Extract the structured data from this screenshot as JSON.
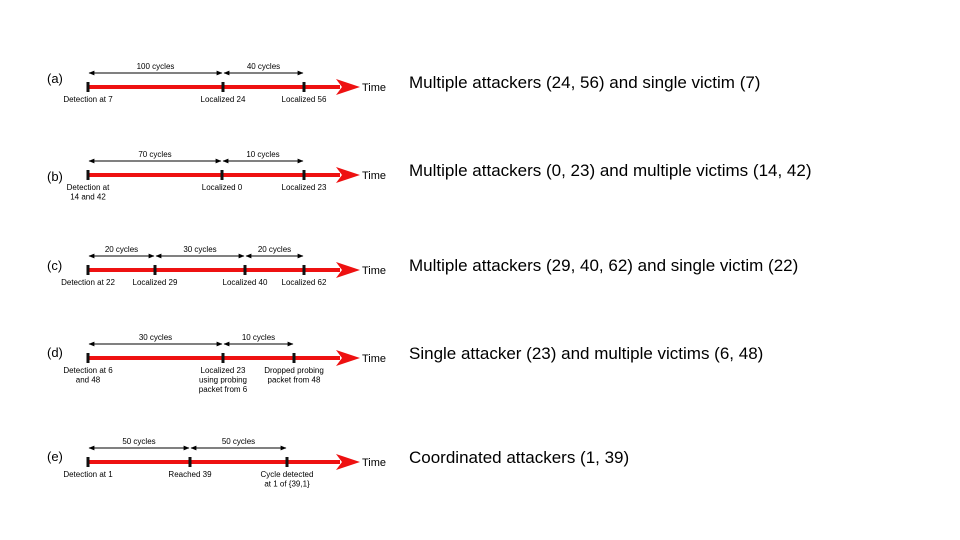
{
  "time_label": "Time",
  "rows": [
    {
      "label": "(a)",
      "caption": "Multiple attackers (24, 56) and single victim (7)",
      "events": [
        [
          "Detection at 7"
        ],
        [
          "Localized 24"
        ],
        [
          "Localized 56"
        ]
      ],
      "intervals": [
        "100 cycles",
        "40 cycles"
      ]
    },
    {
      "label": "(b)",
      "caption": "Multiple attackers (0, 23) and multiple victims (14, 42)",
      "events": [
        [
          "Detection at",
          "14 and 42"
        ],
        [
          "Localized 0"
        ],
        [
          "Localized 23"
        ]
      ],
      "intervals": [
        "70 cycles",
        "10 cycles"
      ]
    },
    {
      "label": "(c)",
      "caption": "Multiple attackers (29, 40, 62) and single victim (22)",
      "events": [
        [
          "Detection at 22"
        ],
        [
          "Localized 29"
        ],
        [
          "Localized 40"
        ],
        [
          "Localized 62"
        ]
      ],
      "intervals": [
        "20 cycles",
        "30 cycles",
        "20 cycles"
      ]
    },
    {
      "label": "(d)",
      "caption": "Single attacker (23) and multiple victims (6, 48)",
      "events": [
        [
          "Detection at 6",
          "and 48"
        ],
        [
          "Localized 23",
          "using probing",
          "packet from 6"
        ],
        [
          "Dropped probing",
          "packet from 48"
        ]
      ],
      "intervals": [
        "30 cycles",
        "10 cycles"
      ]
    },
    {
      "label": "(e)",
      "caption": "Coordinated attackers (1, 39)",
      "events": [
        [
          "Detection at 1"
        ],
        [
          "Reached 39"
        ],
        [
          "Cycle detected",
          "at 1 of {39,1}"
        ]
      ],
      "intervals": [
        "50 cycles",
        "50 cycles"
      ]
    }
  ]
}
